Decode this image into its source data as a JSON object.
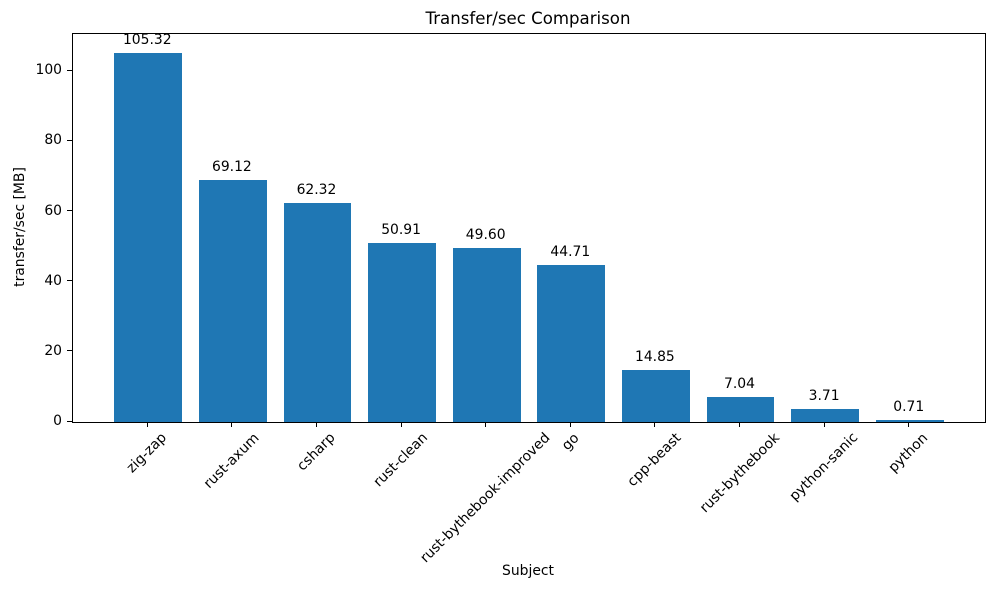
{
  "chart_data": {
    "type": "bar",
    "title": "Transfer/sec Comparison",
    "xlabel": "Subject",
    "ylabel": "transfer/sec [MB]",
    "categories": [
      "zig-zap",
      "rust-axum",
      "csharp",
      "rust-clean",
      "rust-bythebook-improved",
      "go",
      "cpp-beast",
      "rust-bythebook",
      "python-sanic",
      "python"
    ],
    "values": [
      105.32,
      69.12,
      62.32,
      50.91,
      49.6,
      44.71,
      14.85,
      7.04,
      3.71,
      0.71
    ],
    "value_labels": [
      "105.32",
      "69.12",
      "62.32",
      "50.91",
      "49.60",
      "44.71",
      "14.85",
      "7.04",
      "3.71",
      "0.71"
    ],
    "yticks": [
      0,
      20,
      40,
      60,
      80,
      100
    ],
    "ylim": [
      0,
      110.6
    ],
    "bar_color": "#1f77b4",
    "grid": false,
    "legend": null,
    "x_tick_rotation_deg": 45
  }
}
